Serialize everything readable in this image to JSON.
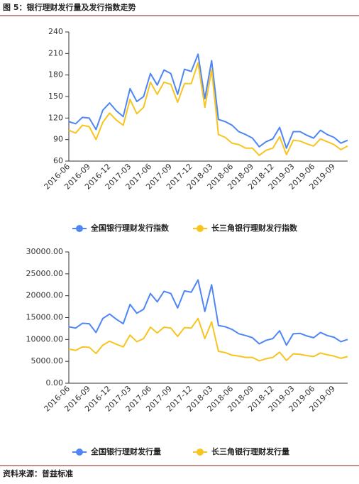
{
  "header": {
    "title": "图 5：银行理财发行量及发行指数走势"
  },
  "footer": {
    "source": "资料来源：普益标准"
  },
  "chart_data": [
    {
      "type": "line",
      "categories": [
        "2016-06",
        null,
        null,
        "2016-09",
        null,
        null,
        "2016-12",
        null,
        null,
        "2017-03",
        null,
        null,
        "2017-06",
        null,
        null,
        "2017-09",
        null,
        null,
        "2017-12",
        null,
        null,
        "2018-03",
        null,
        null,
        "2018-06",
        null,
        null,
        "2018-09",
        null,
        null,
        "2018-12",
        null,
        null,
        "2019-03",
        null,
        null,
        "2019-06",
        null,
        null,
        "2019-09",
        null,
        null
      ],
      "ylim": [
        60,
        240
      ],
      "yticks": [
        60,
        90,
        120,
        150,
        180,
        210,
        240
      ],
      "series": [
        {
          "name": "全国银行理财发行指数",
          "color": "#4f86f5",
          "values": [
            115,
            112,
            121,
            120,
            104,
            131,
            141,
            130,
            122,
            161,
            143,
            150,
            182,
            166,
            187,
            182,
            153,
            188,
            185,
            209,
            147,
            200,
            118,
            115,
            110,
            101,
            97,
            92,
            80,
            87,
            91,
            107,
            78,
            101,
            101,
            96,
            92,
            103,
            97,
            93,
            85,
            89
          ]
        },
        {
          "name": "长三角银行理财发行指数",
          "color": "#f8c420",
          "values": [
            103,
            99,
            110,
            108,
            90,
            114,
            127,
            117,
            110,
            146,
            126,
            135,
            170,
            153,
            170,
            167,
            142,
            168,
            168,
            197,
            135,
            187,
            97,
            93,
            85,
            83,
            78,
            78,
            68,
            75,
            78,
            94,
            69,
            89,
            88,
            84,
            81,
            91,
            87,
            83,
            76,
            81
          ]
        }
      ]
    },
    {
      "type": "line",
      "categories": [
        "2016-06",
        null,
        null,
        "2016-09",
        null,
        null,
        "2016-12",
        null,
        null,
        "2017-03",
        null,
        null,
        "2017-06",
        null,
        null,
        "2017-09",
        null,
        null,
        "2017-12",
        null,
        null,
        "2018-03",
        null,
        null,
        "2018-06",
        null,
        null,
        "2018-09",
        null,
        null,
        "2018-12",
        null,
        null,
        "2019-03",
        null,
        null,
        "2019-06",
        null,
        null,
        "2019-09",
        null,
        null
      ],
      "ylim": [
        0,
        30000
      ],
      "yticks": [
        {
          "value": 0,
          "label": "0.00"
        },
        {
          "value": 5000,
          "label": "5000.00"
        },
        {
          "value": 10000,
          "label": "10000.00"
        },
        {
          "value": 15000,
          "label": "15000.00"
        },
        {
          "value": 20000,
          "label": "20000.00"
        },
        {
          "value": 25000,
          "label": "25000.00"
        },
        {
          "value": 30000,
          "label": "30000.00"
        }
      ],
      "series": [
        {
          "name": "全国银行理财发行量",
          "color": "#4f86f5",
          "values": [
            12900,
            12600,
            13700,
            13600,
            11600,
            14800,
            15800,
            14600,
            13600,
            18000,
            16000,
            16900,
            20500,
            18600,
            21000,
            20500,
            17200,
            21100,
            20800,
            23600,
            16400,
            22500,
            13200,
            12900,
            12300,
            11300,
            10900,
            10400,
            9000,
            9800,
            10200,
            12000,
            8700,
            11300,
            11400,
            10800,
            10400,
            11600,
            10900,
            10500,
            9500,
            10000
          ]
        },
        {
          "name": "长三角银行理财发行量",
          "color": "#f8c420",
          "values": [
            7800,
            7500,
            8300,
            8200,
            6800,
            8700,
            9600,
            8900,
            8300,
            11000,
            9500,
            10200,
            12800,
            11500,
            12800,
            12600,
            10700,
            12700,
            12600,
            14800,
            10200,
            14000,
            7300,
            7000,
            6400,
            6200,
            5900,
            5900,
            5100,
            5600,
            5900,
            7100,
            5200,
            6700,
            6600,
            6300,
            6100,
            6900,
            6500,
            6200,
            5700,
            6100
          ]
        }
      ]
    }
  ]
}
